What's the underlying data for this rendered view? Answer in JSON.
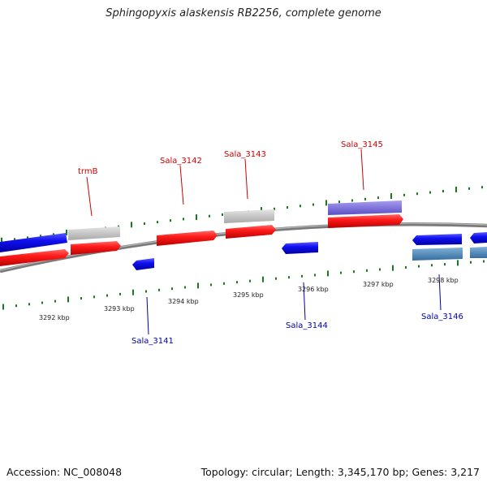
{
  "title": "Sphingopyxis alaskensis RB2256, complete genome",
  "footer": {
    "accession": "Accession: NC_008048",
    "topology": "Topology: circular; Length: 3,345,170 bp; Genes: 3,217"
  },
  "colors": {
    "forward_gene": "#ff0000",
    "reverse_gene": "#0000ee",
    "forward_label": "#cc0000",
    "reverse_label": "#0000aa",
    "tick": "#1a7a1a",
    "backbone": "#888888",
    "other_feature": "#bbbbbb",
    "purple_feature": "#7b6fd6",
    "steel_feature": "#4a7fb0"
  },
  "kbp_labels": [
    "3292 kbp",
    "3293 kbp",
    "3294 kbp",
    "3295 kbp",
    "3296 kbp",
    "3297 kbp",
    "3298 kbp"
  ],
  "gene_labels": {
    "trmB": "trmB",
    "sala3141": "Sala_3141",
    "sala3142": "Sala_3142",
    "sala3143": "Sala_3143",
    "sala3144": "Sala_3144",
    "sala3145": "Sala_3145",
    "sala3146": "Sala_3146"
  }
}
